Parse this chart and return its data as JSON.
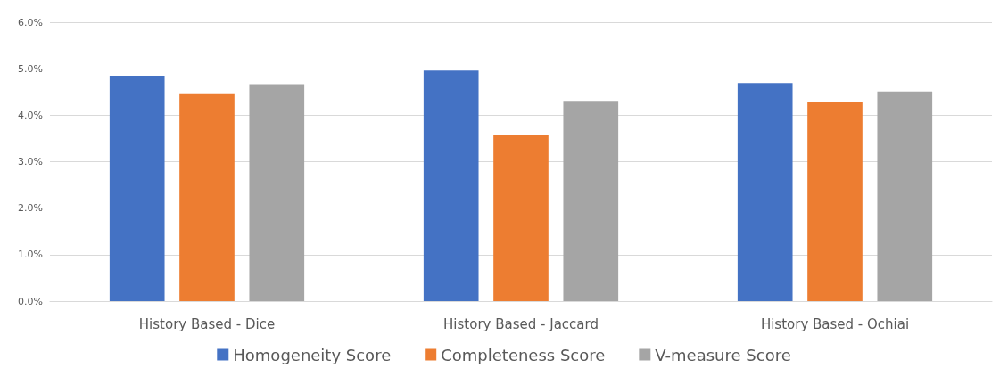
{
  "chart_data": {
    "type": "bar",
    "categories": [
      "History Based - Dice",
      "History Based - Jaccard",
      "History Based - Ochiai"
    ],
    "series": [
      {
        "name": "Homogeneity Score",
        "color": "#4472c4",
        "values": [
          4.85,
          4.96,
          4.69
        ]
      },
      {
        "name": "Completeness Score",
        "color": "#ed7d31",
        "values": [
          4.47,
          3.58,
          4.29
        ]
      },
      {
        "name": "V-measure Score",
        "color": "#a5a5a5",
        "values": [
          4.67,
          4.31,
          4.51
        ]
      }
    ],
    "ylim": [
      0,
      6
    ],
    "yticks": [
      {
        "value": 0,
        "label": "0.0%"
      },
      {
        "value": 1,
        "label": "1.0%"
      },
      {
        "value": 2,
        "label": "2.0%"
      },
      {
        "value": 3,
        "label": "3.0%"
      },
      {
        "value": 4,
        "label": "4.0%"
      },
      {
        "value": 5,
        "label": "5.0%"
      },
      {
        "value": 6,
        "label": "6.0%"
      }
    ],
    "grid": "y",
    "legend": "bottom"
  }
}
